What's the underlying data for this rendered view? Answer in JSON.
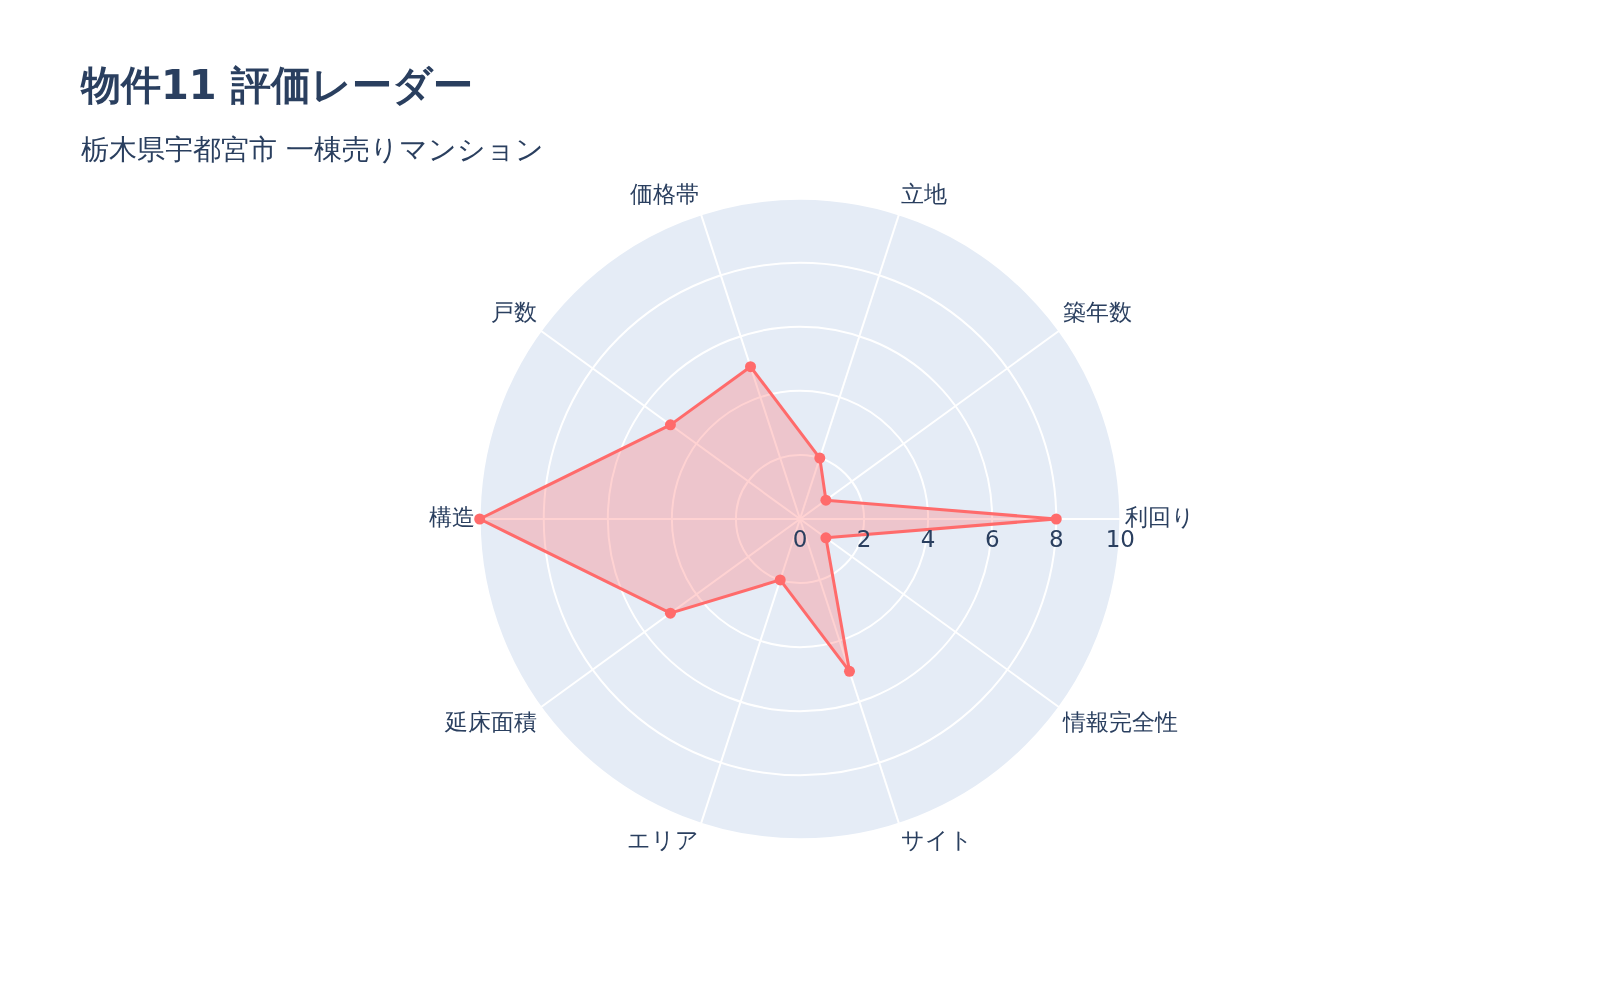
{
  "chart_data": {
    "type": "radar",
    "title": "物件11 評価レーダー",
    "subtitle": "栃木県宇都宮市 一棟売りマンション",
    "categories": [
      "立地",
      "築年数",
      "利回り",
      "情報完全性",
      "サイト",
      "エリア",
      "延床面積",
      "構造",
      "戸数",
      "価格帯"
    ],
    "series": [
      {
        "color": "#ff6b6b",
        "values": [
          2,
          1,
          8,
          1,
          5,
          2,
          5,
          10,
          5,
          5
        ]
      }
    ],
    "ylim": [
      0,
      10
    ],
    "yticks": [
      0,
      2,
      4,
      6,
      8,
      10
    ],
    "grid": true,
    "marker": "circle",
    "legend": false
  }
}
